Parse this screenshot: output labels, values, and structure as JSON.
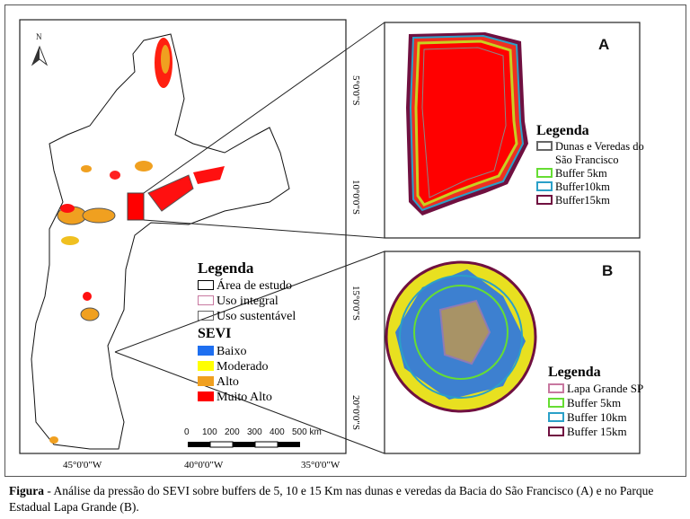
{
  "north_arrow": {
    "label": "N"
  },
  "main_map": {
    "legend": {
      "title": "Legenda",
      "boundaries": [
        {
          "label": "Área de estudo",
          "color": "#000000"
        },
        {
          "label": "Uso integral",
          "color": "#c878a0"
        },
        {
          "label": "Uso sustentável",
          "color": "#666666"
        }
      ],
      "sevi_title": "SEVI",
      "sevi": [
        {
          "label": "Baixo",
          "color": "#1e6ff0"
        },
        {
          "label": "Moderado",
          "color": "#ffff00"
        },
        {
          "label": "Alto",
          "color": "#f0a020"
        },
        {
          "label": "Muito Alto",
          "color": "#ff0000"
        }
      ]
    },
    "scale_bar": {
      "labels": [
        "0",
        "100",
        "200",
        "300",
        "400",
        "500 km"
      ]
    },
    "lat_labels": [
      "5°0'0\"S",
      "10°0'0\"S",
      "15°0'0\"S",
      "20°0'0\"S"
    ],
    "lon_labels": [
      "45°0'0\"W",
      "40°0'0\"W",
      "35°0'0\"W"
    ]
  },
  "panel_a": {
    "label": "A",
    "legend": {
      "title": "Legenda",
      "items": [
        {
          "label": "Dunas e Veredas do",
          "label2": "São Francisco",
          "color": "#666666"
        },
        {
          "label": "Buffer 5km",
          "color": "#66dd33"
        },
        {
          "label": "Buffer10km",
          "color": "#2aa0c8"
        },
        {
          "label": "Buffer15km",
          "color": "#701040"
        }
      ]
    }
  },
  "panel_b": {
    "label": "B",
    "legend": {
      "title": "Legenda",
      "items": [
        {
          "label": "Lapa Grande SP",
          "color": "#c878a0"
        },
        {
          "label": "Buffer 5km",
          "color": "#66dd33"
        },
        {
          "label": "Buffer 10km",
          "color": "#2aa0c8"
        },
        {
          "label": "Buffer 15km",
          "color": "#701040"
        }
      ]
    }
  },
  "caption": {
    "prefix": "Figura",
    "text": " - Análise da pressão do SEVI sobre buffers de 5, 10 e 15 Km nas dunas e veredas da Bacia do São Francisco (A) e no Parque Estadual Lapa Grande (B)."
  }
}
